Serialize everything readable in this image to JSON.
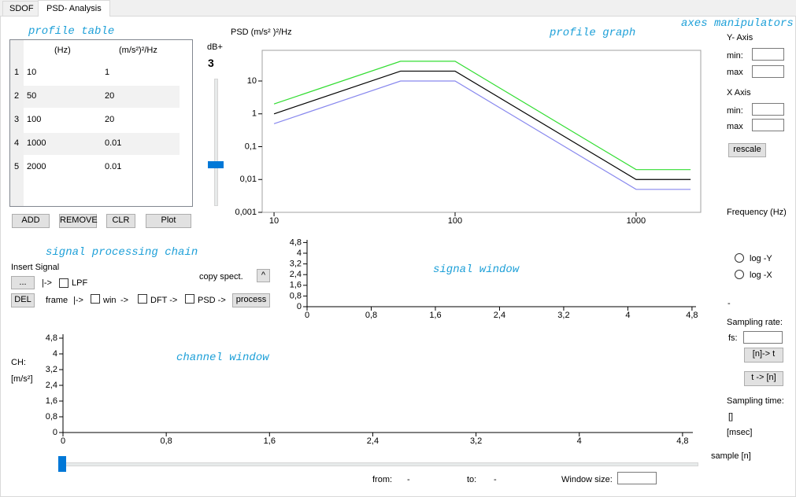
{
  "tabs": [
    "SDOF",
    "PSD- Analysis"
  ],
  "profile_table": {
    "title": "profile table",
    "columns": [
      "(Hz)",
      "(m/s²)²/Hz"
    ],
    "row_labels": [
      1,
      2,
      3,
      4,
      5
    ],
    "rows": [
      [
        10,
        1
      ],
      [
        50,
        20
      ],
      [
        100,
        20
      ],
      [
        1000,
        0.01
      ],
      [
        2000,
        0.01
      ]
    ],
    "buttons": [
      "ADD",
      "REMOVE",
      "CLR",
      "Plot"
    ]
  },
  "gain_slider": {
    "label": "dB+",
    "value": 3
  },
  "axes_manipulators": {
    "title": "axes manipulators",
    "y_axis": "Y- Axis",
    "y_min": "min:",
    "y_max": "max",
    "x_axis": "X Axis",
    "x_min": "min:",
    "x_max": "max",
    "button": "rescale"
  },
  "scale_options": [
    "log -Y",
    "log -X"
  ],
  "sampling": {
    "status": "-",
    "rate_label": "Sampling rate:",
    "fs_label": "fs:",
    "to_time": "[n]-> t",
    "to_samples": "t -> [n]",
    "time_label": "Sampling time:",
    "time_value": "[]",
    "time_unit": "[msec]"
  },
  "signal_chain": {
    "title": "signal processing chain",
    "insert_label": "Insert Signal",
    "browse": "...",
    "arrow1": "|->",
    "lpf": "LPF",
    "delete": "DEL",
    "frame": "frame",
    "arrow2": "|->",
    "win": "win",
    "arrow3": "->",
    "dft": "DFT ->",
    "psd": "PSD ->",
    "copy_label": "copy spect.",
    "copy_button": "^",
    "process": "process"
  },
  "window": {
    "slider_label": "sample [n]",
    "from_label": "from:",
    "from_value": "-",
    "to_label": "to:",
    "to_value": "-",
    "size_label": "Window size:"
  },
  "chart_data": [
    {
      "type": "line",
      "title": "profile graph",
      "ylabel": "PSD (m/s² )²/Hz",
      "xlabel": "Frequency (Hz)",
      "xscale": "log",
      "yscale": "log",
      "xlim": [
        8.6,
        2275
      ],
      "ylim": [
        0.001,
        86
      ],
      "xticks": [
        10,
        100,
        1000
      ],
      "yticks": [
        {
          "value": 0.001,
          "label": "0,001"
        },
        {
          "value": 0.01,
          "label": "0,01"
        },
        {
          "value": 0.1,
          "label": "0,1"
        },
        1,
        10
      ],
      "x": [
        10,
        50,
        100,
        1000,
        2000
      ],
      "series": [
        {
          "color": "#33dd33",
          "values": [
            2,
            40,
            40,
            0.02,
            0.02
          ]
        },
        {
          "color": "#000000",
          "values": [
            1,
            20,
            20,
            0.01,
            0.01
          ]
        },
        {
          "color": "#8888ee",
          "values": [
            0.5,
            10,
            10,
            0.005,
            0.005
          ]
        }
      ]
    },
    {
      "type": "line",
      "title": "signal window",
      "xlim": [
        0,
        4.85
      ],
      "ylim": [
        0,
        5
      ],
      "xticks": [
        0,
        {
          "value": 0.8,
          "label": "0,8"
        },
        {
          "value": 1.6,
          "label": "1,6"
        },
        {
          "value": 2.4,
          "label": "2,4"
        },
        {
          "value": 3.2,
          "label": "3,2"
        },
        4,
        {
          "value": 4.8,
          "label": "4,8"
        }
      ],
      "yticks": [
        0,
        {
          "value": 0.8,
          "label": "0,8"
        },
        {
          "value": 1.6,
          "label": "1,6"
        },
        {
          "value": 2.4,
          "label": "2,4"
        },
        {
          "value": 3.2,
          "label": "3,2"
        },
        4,
        {
          "value": 4.8,
          "label": "4,8"
        }
      ],
      "series": []
    },
    {
      "type": "line",
      "title": "channel window",
      "channel": "CH:",
      "ylabel": "[m/s²]",
      "xlim": [
        0,
        4.88
      ],
      "ylim": [
        0,
        5
      ],
      "xticks": [
        0,
        {
          "value": 0.8,
          "label": "0,8"
        },
        {
          "value": 1.6,
          "label": "1,6"
        },
        {
          "value": 2.4,
          "label": "2,4"
        },
        {
          "value": 3.2,
          "label": "3,2"
        },
        4,
        {
          "value": 4.8,
          "label": "4,8"
        }
      ],
      "yticks": [
        0,
        {
          "value": 0.8,
          "label": "0,8"
        },
        {
          "value": 1.6,
          "label": "1,6"
        },
        {
          "value": 2.4,
          "label": "2,4"
        },
        {
          "value": 3.2,
          "label": "3,2"
        },
        4,
        {
          "value": 4.8,
          "label": "4,8"
        }
      ],
      "series": []
    }
  ]
}
